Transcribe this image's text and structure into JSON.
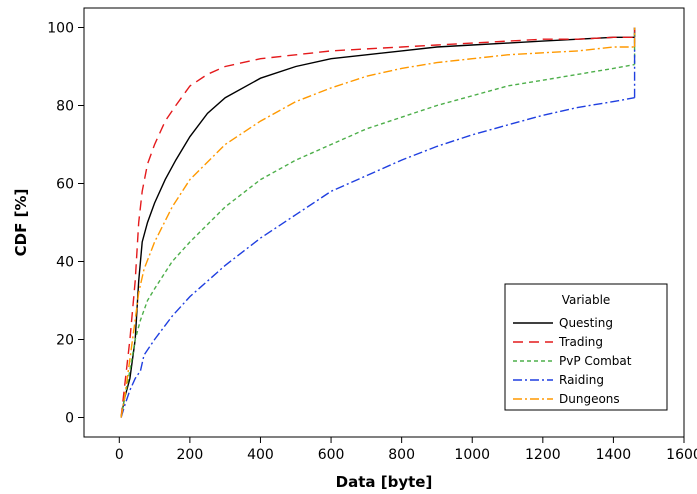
{
  "chart_data": {
    "type": "line",
    "xlabel": "Data [byte]",
    "ylabel": "CDF [%]",
    "xlim": [
      -100,
      1600
    ],
    "ylim": [
      -5,
      105
    ],
    "x_ticks": [
      0,
      200,
      400,
      600,
      800,
      1000,
      1200,
      1400,
      1600
    ],
    "y_ticks": [
      0,
      20,
      40,
      60,
      80,
      100
    ],
    "legend": {
      "title": "Variable",
      "placement": "bottom-right"
    },
    "series": [
      {
        "name": "Questing",
        "color": "#000000",
        "dash": "solid",
        "x": [
          5,
          15,
          30,
          45,
          55,
          65,
          80,
          100,
          130,
          160,
          200,
          250,
          300,
          400,
          500,
          600,
          700,
          800,
          900,
          1000,
          1100,
          1200,
          1300,
          1400,
          1460
        ],
        "y": [
          0,
          5,
          10,
          20,
          35,
          45,
          50,
          55,
          61,
          66,
          72,
          78,
          82,
          87,
          90,
          92,
          93,
          94,
          95,
          95.5,
          96,
          96.5,
          97,
          97.5,
          97.5
        ]
      },
      {
        "name": "Trading",
        "color": "#e41a1c",
        "dash": "long-dash",
        "x": [
          5,
          15,
          30,
          45,
          55,
          65,
          80,
          100,
          130,
          160,
          200,
          250,
          300,
          400,
          500,
          600,
          700,
          800,
          900,
          1000,
          1100,
          1200,
          1300,
          1400,
          1460
        ],
        "y": [
          0,
          8,
          20,
          35,
          50,
          58,
          65,
          70,
          76,
          80,
          85,
          88,
          90,
          92,
          93,
          94,
          94.5,
          95,
          95.5,
          96,
          96.5,
          97,
          97,
          97.5,
          97.5
        ]
      },
      {
        "name": "PvP Combat",
        "color": "#4daf4a",
        "dash": "short-dash",
        "x": [
          5,
          15,
          30,
          45,
          60,
          80,
          100,
          150,
          200,
          300,
          400,
          500,
          600,
          700,
          800,
          900,
          1000,
          1100,
          1200,
          1300,
          1400,
          1460
        ],
        "y": [
          0,
          5,
          12,
          20,
          25,
          30,
          33,
          40,
          45,
          54,
          61,
          66,
          70,
          74,
          77,
          80,
          82.5,
          85,
          86.5,
          88,
          89.5,
          90.5
        ]
      },
      {
        "name": "Raiding",
        "color": "#1f3fe0",
        "dash": "dash-dot",
        "x": [
          5,
          15,
          30,
          45,
          60,
          70,
          100,
          150,
          200,
          300,
          400,
          500,
          600,
          700,
          800,
          900,
          1000,
          1100,
          1200,
          1300,
          1400,
          1460
        ],
        "y": [
          0,
          3,
          7,
          10,
          12,
          16,
          20,
          26,
          31,
          39,
          46,
          52,
          58,
          62,
          66,
          69.5,
          72.5,
          75,
          77.5,
          79.5,
          81,
          82
        ]
      },
      {
        "name": "Dungeons",
        "color": "#ff9900",
        "dash": "dash-dot",
        "x": [
          5,
          15,
          30,
          45,
          55,
          70,
          100,
          150,
          200,
          300,
          400,
          500,
          600,
          700,
          800,
          900,
          1000,
          1100,
          1200,
          1300,
          1400,
          1460
        ],
        "y": [
          0,
          5,
          15,
          25,
          32,
          38,
          45,
          54,
          61,
          70,
          76,
          81,
          84.5,
          87.5,
          89.5,
          91,
          92,
          93,
          93.5,
          94,
          95,
          95
        ]
      }
    ]
  }
}
